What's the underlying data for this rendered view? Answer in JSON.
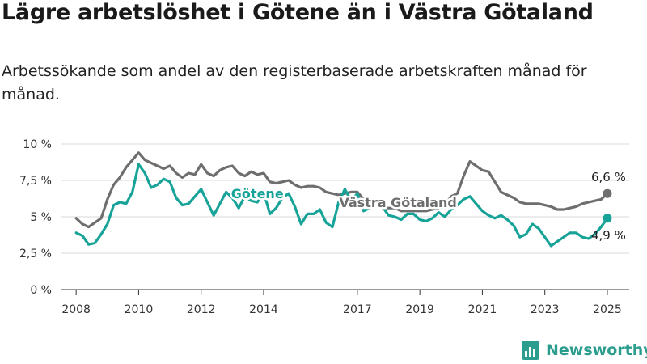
{
  "title": "Lägre arbetslöshet i Götene än i Västra Götaland",
  "subtitle": "Arbetssökande som andel av den registerbaserade arbetskraften månad för månad.",
  "brand": "Newsworthy",
  "colors": {
    "gotene": "#17a398",
    "vastra": "#6e6e6e",
    "grid": "#d9d9d9"
  },
  "chart_data": {
    "type": "line",
    "title": "Lägre arbetslöshet i Götene än i Västra Götaland",
    "xlabel": "",
    "ylabel": "",
    "ylim": [
      0,
      10
    ],
    "xlim": [
      2008,
      2025.2
    ],
    "grid": true,
    "y_ticks": [
      {
        "value": 0,
        "label": "0 %"
      },
      {
        "value": 2.5,
        "label": "2,5 %"
      },
      {
        "value": 5,
        "label": "5 %"
      },
      {
        "value": 7.5,
        "label": "7,5 %"
      },
      {
        "value": 10,
        "label": "10 %"
      }
    ],
    "x_ticks": [
      {
        "value": 2008,
        "label": "2008"
      },
      {
        "value": 2010,
        "label": "2010"
      },
      {
        "value": 2012,
        "label": "2012"
      },
      {
        "value": 2014,
        "label": "2014"
      },
      {
        "value": 2017,
        "label": "2017"
      },
      {
        "value": 2019,
        "label": "2019"
      },
      {
        "value": 2021,
        "label": "2021"
      },
      {
        "value": 2023,
        "label": "2023"
      },
      {
        "value": 2025,
        "label": "2025"
      }
    ],
    "series": [
      {
        "name": "Västra Götaland",
        "color": "#6e6e6e",
        "end_label": "6,6 %",
        "x": [
          2008.0,
          2008.2,
          2008.4,
          2008.6,
          2008.8,
          2009.0,
          2009.2,
          2009.4,
          2009.6,
          2009.8,
          2010.0,
          2010.2,
          2010.4,
          2010.6,
          2010.8,
          2011.0,
          2011.2,
          2011.4,
          2011.6,
          2011.8,
          2012.0,
          2012.2,
          2012.4,
          2012.6,
          2012.8,
          2013.0,
          2013.2,
          2013.4,
          2013.6,
          2013.8,
          2014.0,
          2014.2,
          2014.4,
          2014.6,
          2014.8,
          2015.0,
          2015.2,
          2015.4,
          2015.6,
          2015.8,
          2016.0,
          2016.2,
          2016.4,
          2016.6,
          2016.8,
          2017.0,
          2017.2,
          2017.4,
          2017.6,
          2017.8,
          2018.0,
          2018.2,
          2018.4,
          2018.6,
          2018.8,
          2019.0,
          2019.2,
          2019.4,
          2019.6,
          2019.8,
          2020.0,
          2020.2,
          2020.4,
          2020.6,
          2020.8,
          2021.0,
          2021.2,
          2021.4,
          2021.6,
          2021.8,
          2022.0,
          2022.2,
          2022.4,
          2022.6,
          2022.8,
          2023.0,
          2023.2,
          2023.4,
          2023.6,
          2023.8,
          2024.0,
          2024.2,
          2024.4,
          2024.6,
          2024.8,
          2025.0
        ],
        "values": [
          4.9,
          4.5,
          4.3,
          4.6,
          4.9,
          6.2,
          7.2,
          7.7,
          8.4,
          8.9,
          9.4,
          8.9,
          8.7,
          8.5,
          8.3,
          8.5,
          8.0,
          7.7,
          8.0,
          7.9,
          8.6,
          8.0,
          7.8,
          8.2,
          8.4,
          8.5,
          8.0,
          7.8,
          8.1,
          7.9,
          8.0,
          7.4,
          7.3,
          7.4,
          7.5,
          7.2,
          7.0,
          7.1,
          7.1,
          7.0,
          6.7,
          6.6,
          6.5,
          6.6,
          6.7,
          6.7,
          6.2,
          5.9,
          5.8,
          5.6,
          5.6,
          5.6,
          5.4,
          5.4,
          5.4,
          5.4,
          5.4,
          5.5,
          5.6,
          5.8,
          6.4,
          6.6,
          7.8,
          8.8,
          8.5,
          8.2,
          8.1,
          7.4,
          6.7,
          6.5,
          6.3,
          6.0,
          5.9,
          5.9,
          5.9,
          5.8,
          5.7,
          5.5,
          5.5,
          5.6,
          5.7,
          5.9,
          6.0,
          6.1,
          6.2,
          6.6
        ]
      },
      {
        "name": "Götene",
        "color": "#17a398",
        "end_label": "4,9 %",
        "x": [
          2008.0,
          2008.2,
          2008.4,
          2008.6,
          2008.8,
          2009.0,
          2009.2,
          2009.4,
          2009.6,
          2009.8,
          2010.0,
          2010.2,
          2010.4,
          2010.6,
          2010.8,
          2011.0,
          2011.2,
          2011.4,
          2011.6,
          2011.8,
          2012.0,
          2012.2,
          2012.4,
          2012.6,
          2012.8,
          2013.0,
          2013.2,
          2013.4,
          2013.6,
          2013.8,
          2014.0,
          2014.2,
          2014.4,
          2014.6,
          2014.8,
          2015.0,
          2015.2,
          2015.4,
          2015.6,
          2015.8,
          2016.0,
          2016.2,
          2016.4,
          2016.6,
          2016.8,
          2017.0,
          2017.2,
          2017.4,
          2017.6,
          2017.8,
          2018.0,
          2018.2,
          2018.4,
          2018.6,
          2018.8,
          2019.0,
          2019.2,
          2019.4,
          2019.6,
          2019.8,
          2020.0,
          2020.2,
          2020.4,
          2020.6,
          2020.8,
          2021.0,
          2021.2,
          2021.4,
          2021.6,
          2021.8,
          2022.0,
          2022.2,
          2022.4,
          2022.6,
          2022.8,
          2023.0,
          2023.2,
          2023.4,
          2023.6,
          2023.8,
          2024.0,
          2024.2,
          2024.4,
          2024.6,
          2024.8,
          2025.0
        ],
        "values": [
          3.9,
          3.7,
          3.1,
          3.2,
          3.8,
          4.5,
          5.8,
          6.0,
          5.9,
          6.7,
          8.6,
          8.0,
          7.0,
          7.2,
          7.6,
          7.4,
          6.3,
          5.8,
          5.9,
          6.4,
          6.9,
          6.0,
          5.1,
          5.9,
          6.7,
          6.3,
          5.6,
          6.4,
          6.1,
          6.0,
          6.7,
          5.2,
          5.6,
          6.3,
          6.6,
          5.7,
          4.5,
          5.2,
          5.2,
          5.5,
          4.6,
          4.3,
          6.0,
          6.9,
          6.1,
          6.6,
          5.4,
          5.6,
          5.8,
          5.7,
          5.1,
          5.0,
          4.8,
          5.2,
          5.2,
          4.8,
          4.7,
          4.9,
          5.3,
          5.0,
          5.5,
          5.8,
          6.2,
          6.4,
          5.9,
          5.4,
          5.1,
          4.9,
          5.1,
          4.8,
          4.4,
          3.6,
          3.8,
          4.5,
          4.2,
          3.6,
          3.0,
          3.3,
          3.6,
          3.9,
          3.9,
          3.6,
          3.5,
          3.8,
          4.3,
          4.9
        ]
      }
    ],
    "annotations": [
      {
        "text": "Götene",
        "x": 2013.8,
        "y": 6.6,
        "series": "Götene"
      },
      {
        "text": "Västra Götaland",
        "x": 2018.3,
        "y": 6.0,
        "series": "Västra Götaland"
      }
    ]
  }
}
